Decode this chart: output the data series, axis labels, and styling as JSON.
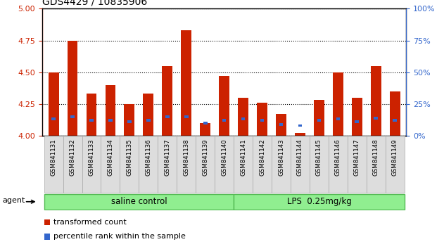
{
  "title": "GDS4429 / 10835906",
  "samples": [
    "GSM841131",
    "GSM841132",
    "GSM841133",
    "GSM841134",
    "GSM841135",
    "GSM841136",
    "GSM841137",
    "GSM841138",
    "GSM841139",
    "GSM841140",
    "GSM841141",
    "GSM841142",
    "GSM841143",
    "GSM841144",
    "GSM841145",
    "GSM841146",
    "GSM841147",
    "GSM841148",
    "GSM841149"
  ],
  "red_values": [
    4.5,
    4.75,
    4.33,
    4.4,
    4.25,
    4.33,
    4.55,
    4.83,
    4.1,
    4.47,
    4.3,
    4.26,
    4.17,
    4.02,
    4.28,
    4.5,
    4.3,
    4.55,
    4.35
  ],
  "blue_values": [
    4.13,
    4.15,
    4.12,
    4.12,
    4.11,
    4.12,
    4.15,
    4.15,
    4.1,
    4.12,
    4.13,
    4.12,
    4.09,
    4.08,
    4.12,
    4.13,
    4.11,
    4.14,
    4.12
  ],
  "ylim_left": [
    4.0,
    5.0
  ],
  "ylim_right": [
    0,
    100
  ],
  "yticks_left": [
    4.0,
    4.25,
    4.5,
    4.75,
    5.0
  ],
  "yticks_right": [
    0,
    25,
    50,
    75,
    100
  ],
  "group_split": 10,
  "group1_label": "saline control",
  "group2_label": "LPS  0.25mg/kg",
  "group_color": "#90EE90",
  "group_edge_color": "#55BB55",
  "bar_color": "#CC2200",
  "blue_color": "#3366CC",
  "bar_width": 0.55,
  "background_color": "#FFFFFF",
  "left_axis_color": "#CC2200",
  "right_axis_color": "#3366CC",
  "agent_label": "agent",
  "legend": [
    {
      "label": "transformed count",
      "color": "#CC2200"
    },
    {
      "label": "percentile rank within the sample",
      "color": "#3366CC"
    }
  ],
  "tick_bg_color": "#DDDDDD",
  "tick_edge_color": "#AAAAAA"
}
